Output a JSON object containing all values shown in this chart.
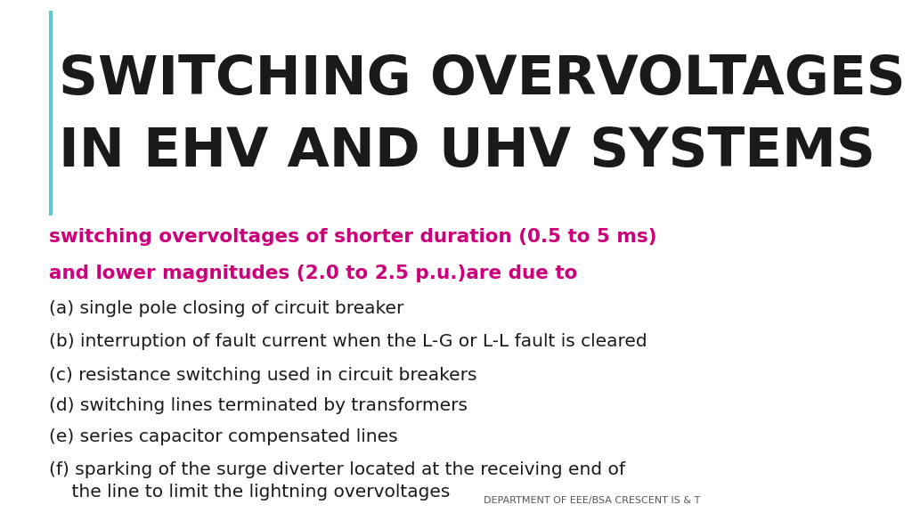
{
  "background_color": "#ffffff",
  "title_line1": "SWITCHING OVERVOLTAGES",
  "title_line2": "IN EHV AND UHV SYSTEMS",
  "title_color": "#1a1a1a",
  "title_fontsize": 44,
  "accent_bar_color": "#5bc8d4",
  "subtitle_line1": "switching overvoltages of shorter duration (0.5 to 5 ms)",
  "subtitle_line2": "and lower magnitudes (2.0 to 2.5 p.u.)are due to",
  "subtitle_color": "#cc007a",
  "subtitle_fontsize": 15.5,
  "items": [
    "(a) single pole closing of circuit breaker",
    "(b) interruption of fault current when the L-G or L-L fault is cleared",
    "(c) resistance switching used in circuit breakers",
    "(d) switching lines terminated by transformers",
    "(e) series capacitor compensated lines",
    "(f) sparking of the surge diverter located at the receiving end of\n    the line to limit the lightning overvoltages"
  ],
  "items_color": "#1a1a1a",
  "items_fontsize": 14.5,
  "footer_text": "DEPARTMENT OF EEE/BSA CRESCENT IS & T",
  "footer_color": "#555555",
  "footer_fontsize": 8
}
